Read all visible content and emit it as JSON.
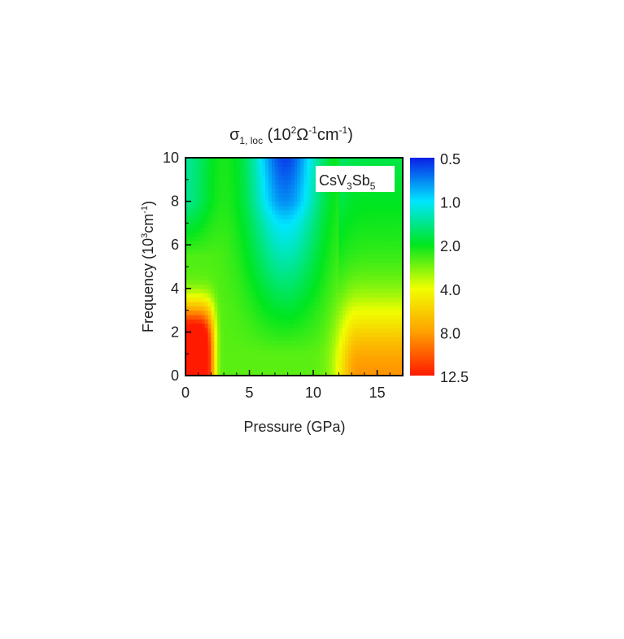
{
  "chart_data": {
    "type": "heatmap",
    "title": {
      "symbol": "σ",
      "symbol_subscript": "1, loc",
      "units_open": " (10",
      "units_exp1": "2",
      "units_ohm": "Ω",
      "units_exp2": "-1",
      "units_cm": "cm",
      "units_exp3": "-1",
      "units_close": ")"
    },
    "xlabel": "Pressure (GPa)",
    "ylabel": {
      "prefix": "Frequency (10",
      "exp1": "3",
      "mid": "cm",
      "exp2": "-1",
      "suffix": ")"
    },
    "xlim": [
      0,
      17
    ],
    "ylim": [
      0,
      10
    ],
    "x_ticks": [
      "0",
      "5",
      "10",
      "15"
    ],
    "y_ticks": [
      "0",
      "2",
      "4",
      "6",
      "8",
      "10"
    ],
    "annotation": {
      "base": "CsV",
      "sub1": "3",
      "mid": "Sb",
      "sub2": "5"
    },
    "colorbar": {
      "scale": "log",
      "range": [
        0.5,
        12.5
      ],
      "tick_labels": [
        "0.5",
        "1.0",
        "2.0",
        "4.0",
        "8.0",
        "12.5"
      ],
      "colors": [
        "#0a1ee6",
        "#00e6ff",
        "#00e61e",
        "#f0ff00",
        "#ffa000",
        "#ff1a00"
      ]
    },
    "regions": [
      {
        "x": [
          0,
          2.5
        ],
        "y": [
          0,
          4
        ],
        "approx_value": 12
      },
      {
        "x": [
          5,
          10
        ],
        "y": [
          8,
          10
        ],
        "approx_value": 0.5
      },
      {
        "x": [
          11.5,
          17
        ],
        "y": [
          0,
          3
        ],
        "approx_value": 7
      },
      {
        "x": [
          0,
          2
        ],
        "y": [
          8,
          10
        ],
        "approx_value": 1
      }
    ]
  }
}
